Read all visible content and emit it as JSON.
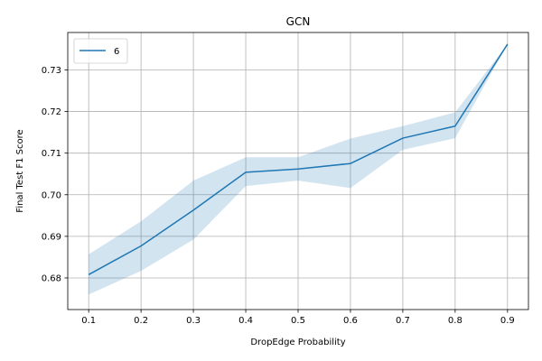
{
  "chart_data": {
    "type": "line",
    "title": "GCN",
    "xlabel": "DropEdge Probability",
    "ylabel": "Final Test F1 Score",
    "x": [
      0.1,
      0.2,
      0.3,
      0.4,
      0.5,
      0.6,
      0.7,
      0.8,
      0.9
    ],
    "xlim": [
      0.06,
      0.94
    ],
    "ylim": [
      0.6724,
      0.739
    ],
    "xticks": [
      0.1,
      0.2,
      0.3,
      0.4,
      0.5,
      0.6,
      0.7,
      0.8,
      0.9
    ],
    "xtick_labels": [
      "0.1",
      "0.2",
      "0.3",
      "0.4",
      "0.5",
      "0.6",
      "0.7",
      "0.8",
      "0.9"
    ],
    "yticks": [
      0.68,
      0.69,
      0.7,
      0.71,
      0.72,
      0.73
    ],
    "ytick_labels": [
      "0.68",
      "0.69",
      "0.70",
      "0.71",
      "0.72",
      "0.73"
    ],
    "grid": true,
    "legend_position": "top-left",
    "series": [
      {
        "name": "6",
        "color": "#1f77b4",
        "band_color": "#1f77b4",
        "values": [
          0.6808,
          0.6877,
          0.6963,
          0.7054,
          0.7062,
          0.7075,
          0.7136,
          0.7165,
          0.7362
        ],
        "lower": [
          0.676,
          0.6817,
          0.6892,
          0.7021,
          0.7034,
          0.7016,
          0.7108,
          0.7136,
          0.7362
        ],
        "upper": [
          0.6857,
          0.6936,
          0.7034,
          0.709,
          0.709,
          0.7135,
          0.7165,
          0.7198,
          0.7362
        ]
      }
    ]
  }
}
